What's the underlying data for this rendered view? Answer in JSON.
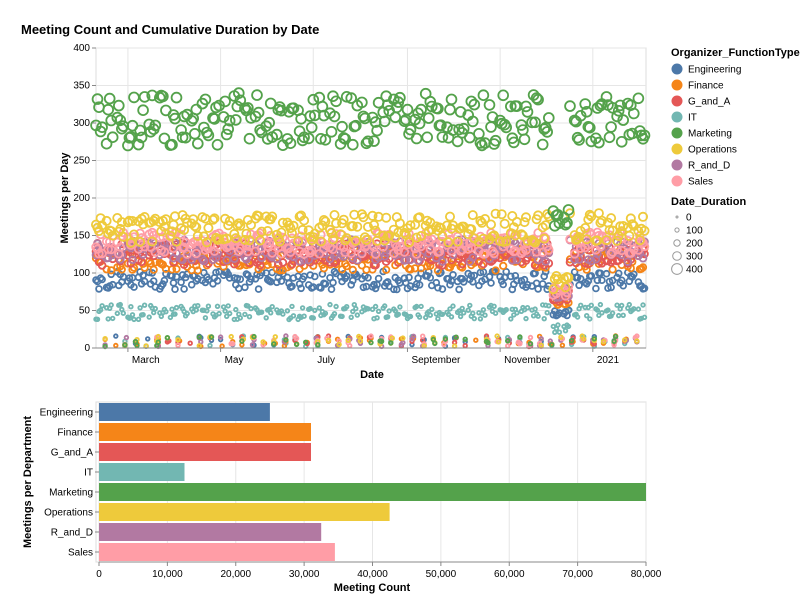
{
  "title": "Meeting Count and Cumulative Duration by Date",
  "colors": {
    "Engineering": "#4c78a8",
    "Finance": "#f58518",
    "G_and_A": "#e45756",
    "IT": "#72b7b2",
    "Marketing": "#54a24b",
    "Operations": "#eeca3b",
    "R_and_D": "#b279a2",
    "Sales": "#ff9da6"
  },
  "legend": {
    "color_title": "Organizer_FunctionType",
    "size_title": "Date_Duration",
    "size_labels": [
      "0",
      "100",
      "200",
      "300",
      "400"
    ]
  },
  "chart_data": [
    {
      "type": "scatter",
      "xlabel": "Date",
      "ylabel": "Meetings per Day",
      "x_ticks": [
        "March",
        "May",
        "July",
        "September",
        "November",
        "2021"
      ],
      "x_range": [
        "2020-02-09",
        "2021-02-05"
      ],
      "ylim": [
        0,
        400
      ],
      "y_ticks": [
        0,
        50,
        100,
        150,
        200,
        250,
        300,
        350,
        400
      ],
      "grid": true,
      "series": [
        {
          "name": "Marketing",
          "level": 305,
          "spread": 35,
          "size": 420
        },
        {
          "name": "Operations",
          "level": 160,
          "spread": 20,
          "size": 300
        },
        {
          "name": "Sales",
          "level": 140,
          "spread": 15,
          "size": 250
        },
        {
          "name": "R_and_D",
          "level": 130,
          "spread": 15,
          "size": 200
        },
        {
          "name": "G_and_A",
          "level": 125,
          "spread": 15,
          "size": 200
        },
        {
          "name": "Finance",
          "level": 118,
          "spread": 15,
          "size": 180
        },
        {
          "name": "Engineering",
          "level": 90,
          "spread": 12,
          "size": 150
        },
        {
          "name": "IT",
          "level": 48,
          "spread": 10,
          "size": 60
        }
      ]
    },
    {
      "type": "bar",
      "orientation": "horizontal",
      "xlabel": "Meeting Count",
      "ylabel": "Meetings per Department",
      "categories": [
        "Engineering",
        "Finance",
        "G_and_A",
        "IT",
        "Marketing",
        "Operations",
        "R_and_D",
        "Sales"
      ],
      "values": [
        25000,
        31000,
        31000,
        12500,
        80000,
        42500,
        32500,
        34500
      ],
      "xlim": [
        0,
        80000
      ],
      "x_ticks": [
        "0",
        "10,000",
        "20,000",
        "30,000",
        "40,000",
        "50,000",
        "60,000",
        "70,000",
        "80,000"
      ]
    }
  ]
}
